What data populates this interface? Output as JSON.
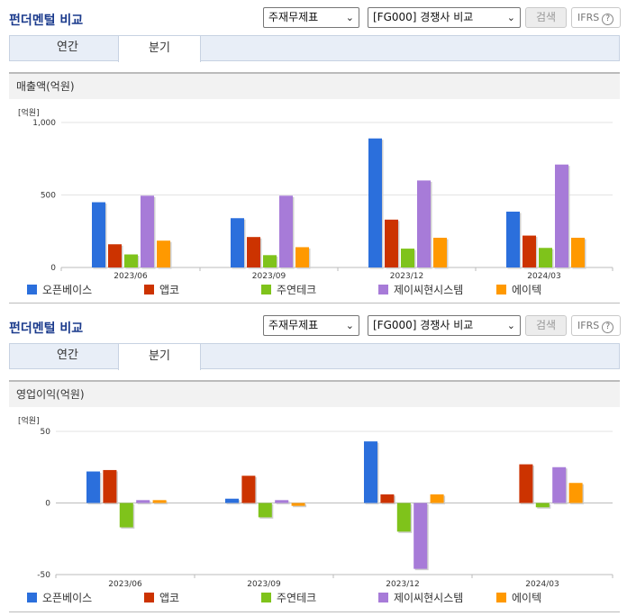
{
  "colors": {
    "s1": "#2b6fdc",
    "s2": "#cc3300",
    "s3": "#7fc31b",
    "s4": "#a77bd8",
    "s5": "#ff9900"
  },
  "header": {
    "title": "펀더멘털 비교",
    "select_report": "주재무제표",
    "select_compare": "[FG000] 경쟁사 비교",
    "search_label": "검색",
    "ifrs_label": "IFRS",
    "help_glyph": "?"
  },
  "tabs": {
    "annual": "연간",
    "quarter": "분기",
    "active": "분기"
  },
  "legend": [
    "오픈베이스",
    "앱코",
    "주연테크",
    "제이씨현시스템",
    "에이텍"
  ],
  "panels": [
    {
      "section_title": "매출액(억원)",
      "unit": "[억원]"
    },
    {
      "section_title": "영업이익(억원)",
      "unit": "[억원]"
    }
  ],
  "chart_data": [
    {
      "type": "bar",
      "title": "매출액(억원)",
      "ylabel": "[억원]",
      "categories": [
        "2023/06",
        "2023/09",
        "2023/12",
        "2024/03"
      ],
      "ylim": [
        0,
        1000
      ],
      "yticks": [
        0,
        500,
        1000
      ],
      "ytick_labels": [
        "0",
        "500",
        "1,000"
      ],
      "grid": true,
      "legend": "bottom",
      "series": [
        {
          "name": "오픈베이스",
          "values": [
            450,
            340,
            890,
            385
          ]
        },
        {
          "name": "앱코",
          "values": [
            160,
            210,
            330,
            220
          ]
        },
        {
          "name": "주연테크",
          "values": [
            90,
            85,
            130,
            135
          ]
        },
        {
          "name": "제이씨현시스템",
          "values": [
            495,
            495,
            600,
            710
          ]
        },
        {
          "name": "에이텍",
          "values": [
            185,
            140,
            205,
            205
          ]
        }
      ]
    },
    {
      "type": "bar",
      "title": "영업이익(억원)",
      "ylabel": "[억원]",
      "categories": [
        "2023/06",
        "2023/09",
        "2023/12",
        "2024/03"
      ],
      "ylim": [
        -50,
        50
      ],
      "yticks": [
        -50,
        0,
        50
      ],
      "ytick_labels": [
        "-50",
        "0",
        "50"
      ],
      "grid": true,
      "legend": "bottom",
      "series": [
        {
          "name": "오픈베이스",
          "values": [
            22,
            3,
            43,
            0
          ]
        },
        {
          "name": "앱코",
          "values": [
            23,
            19,
            6,
            27
          ]
        },
        {
          "name": "주연테크",
          "values": [
            -17,
            -10,
            -20,
            -3
          ]
        },
        {
          "name": "제이씨현시스템",
          "values": [
            2,
            2,
            -46,
            25
          ]
        },
        {
          "name": "에이텍",
          "values": [
            2,
            -2,
            6,
            14
          ]
        }
      ]
    }
  ]
}
